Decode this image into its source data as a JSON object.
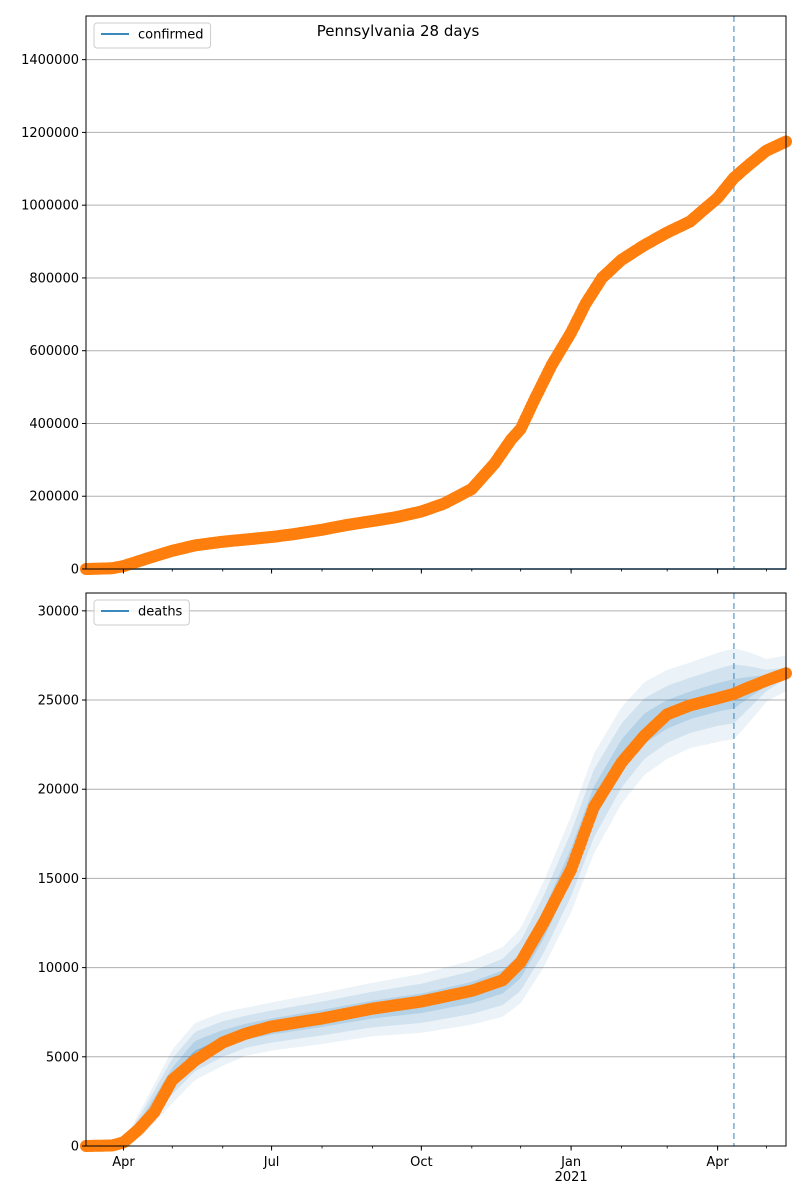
{
  "title": "Pennsylvania 28 days",
  "colors": {
    "observed": "#ff7f0e",
    "model_line": "#1f77b4",
    "band": "#1f77b4",
    "grid": "#b0b0b0",
    "vline": "#1f77b4"
  },
  "x_axis": {
    "start": "2020-03-09",
    "end": "2021-05-13",
    "tick_labels": [
      {
        "date": "2020-04-01",
        "label": "Apr",
        "sub": ""
      },
      {
        "date": "2020-07-01",
        "label": "Jul",
        "sub": ""
      },
      {
        "date": "2020-10-01",
        "label": "Oct",
        "sub": ""
      },
      {
        "date": "2021-01-01",
        "label": "Jan",
        "sub": "2021"
      },
      {
        "date": "2021-04-01",
        "label": "Apr",
        "sub": ""
      }
    ],
    "forecast_date": "2021-04-11"
  },
  "chart_data": [
    {
      "type": "line",
      "legend": [
        "confirmed"
      ],
      "legend_placement": "top-left",
      "grid": "y",
      "ylim": [
        0,
        1520000
      ],
      "yticks": [
        0,
        200000,
        400000,
        600000,
        800000,
        1000000,
        1200000,
        1400000
      ],
      "series": [
        {
          "name": "confirmed",
          "role": "model",
          "x": [
            "2020-03-09",
            "2021-05-13"
          ],
          "y": [
            0,
            0
          ]
        },
        {
          "role": "observed",
          "x": [
            "2020-03-09",
            "2020-03-25",
            "2020-04-01",
            "2020-04-15",
            "2020-05-01",
            "2020-05-15",
            "2020-06-01",
            "2020-06-15",
            "2020-07-01",
            "2020-07-15",
            "2020-08-01",
            "2020-08-15",
            "2020-09-01",
            "2020-09-15",
            "2020-10-01",
            "2020-10-15",
            "2020-11-01",
            "2020-11-15",
            "2020-11-25",
            "2020-12-01",
            "2020-12-10",
            "2020-12-20",
            "2021-01-01",
            "2021-01-10",
            "2021-01-20",
            "2021-02-01",
            "2021-02-15",
            "2021-03-01",
            "2021-03-15",
            "2021-04-01",
            "2021-04-11",
            "2021-04-20",
            "2021-05-01",
            "2021-05-13"
          ],
          "y": [
            0,
            2000,
            8000,
            28000,
            50000,
            65000,
            75000,
            81000,
            88000,
            96000,
            108000,
            120000,
            132000,
            142000,
            158000,
            180000,
            220000,
            290000,
            355000,
            385000,
            470000,
            560000,
            650000,
            730000,
            800000,
            850000,
            890000,
            925000,
            955000,
            1020000,
            1075000,
            1110000,
            1150000,
            1175000
          ]
        }
      ]
    },
    {
      "type": "line",
      "legend": [
        "deaths"
      ],
      "legend_placement": "top-left",
      "grid": "y",
      "ylim": [
        0,
        31000
      ],
      "yticks": [
        0,
        5000,
        10000,
        15000,
        20000,
        25000,
        30000
      ],
      "series": [
        {
          "name": "deaths",
          "role": "model",
          "x": [
            "2020-03-09",
            "2020-04-01",
            "2020-04-15",
            "2020-05-01",
            "2020-05-15",
            "2020-06-01",
            "2020-06-15",
            "2020-07-01",
            "2020-08-01",
            "2020-09-01",
            "2020-10-01",
            "2020-11-01",
            "2020-11-20",
            "2020-12-01",
            "2020-12-15",
            "2021-01-01",
            "2021-01-15",
            "2021-02-01",
            "2021-02-15",
            "2021-03-01",
            "2021-03-15",
            "2021-04-01",
            "2021-04-11",
            "2021-04-20",
            "2021-05-01",
            "2021-05-13"
          ],
          "y": [
            0,
            100,
            1700,
            3900,
            5300,
            6000,
            6400,
            6700,
            7150,
            7650,
            8000,
            8600,
            9200,
            10100,
            12400,
            15800,
            19200,
            21900,
            23400,
            24200,
            24700,
            25150,
            25350,
            25700,
            26100,
            26500
          ],
          "band_widths": [
            [
              0,
              40,
              300,
              500,
              600,
              500,
              450,
              450,
              480,
              500,
              550,
              600,
              650,
              700,
              800,
              900,
              950,
              900,
              850,
              800,
              780,
              800,
              820,
              600,
              300,
              120
            ],
            [
              0,
              80,
              600,
              1000,
              1100,
              1000,
              900,
              900,
              950,
              1000,
              1100,
              1200,
              1300,
              1400,
              1600,
              1800,
              1900,
              1800,
              1700,
              1600,
              1550,
              1600,
              1650,
              1200,
              600,
              300
            ],
            [
              0,
              120,
              900,
              1500,
              1600,
              1500,
              1350,
              1350,
              1430,
              1500,
              1650,
              1800,
              1950,
              2100,
              2400,
              2700,
              2800,
              2700,
              2600,
              2500,
              2400,
              2500,
              2550,
              2000,
              1200,
              1000
            ]
          ]
        },
        {
          "role": "observed",
          "x": [
            "2020-03-09",
            "2020-03-25",
            "2020-04-01",
            "2020-04-10",
            "2020-04-20",
            "2020-05-01",
            "2020-05-15",
            "2020-06-01",
            "2020-06-15",
            "2020-07-01",
            "2020-08-01",
            "2020-09-01",
            "2020-10-01",
            "2020-11-01",
            "2020-11-20",
            "2020-12-01",
            "2020-12-15",
            "2021-01-01",
            "2021-01-15",
            "2021-02-01",
            "2021-02-15",
            "2021-03-01",
            "2021-03-15",
            "2021-04-01",
            "2021-04-11",
            "2021-04-20",
            "2021-05-01",
            "2021-05-13"
          ],
          "y": [
            0,
            30,
            200,
            900,
            1900,
            3700,
            4800,
            5800,
            6300,
            6700,
            7150,
            7700,
            8100,
            8700,
            9300,
            10300,
            12500,
            15500,
            19000,
            21500,
            23000,
            24200,
            24700,
            25100,
            25350,
            25700,
            26100,
            26500
          ]
        }
      ]
    }
  ]
}
